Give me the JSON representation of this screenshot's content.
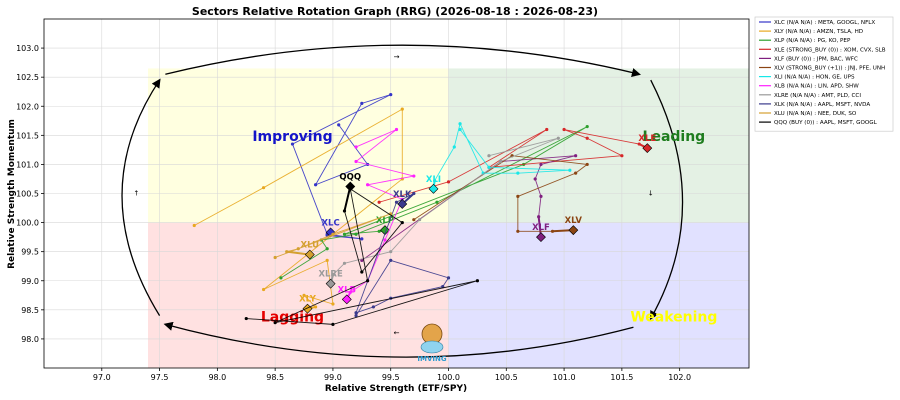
{
  "chart_data": {
    "type": "scatter",
    "title": "Sectors Relative Rotation Graph (RRG) (2026-08-18 : 2026-08-23)",
    "xlabel": "Relative Strength (ETF/SPY)",
    "ylabel": "Relative Strength Momentum",
    "xlim": [
      96.5,
      102.6
    ],
    "ylim": [
      97.5,
      103.5
    ],
    "xticks": [
      "97.0",
      "97.5",
      "98.0",
      "98.5",
      "99.0",
      "99.5",
      "100.0",
      "100.5",
      "101.0",
      "101.5",
      "102.0"
    ],
    "yticks": [
      "98.0",
      "98.5",
      "99.0",
      "99.5",
      "100.0",
      "100.5",
      "101.0",
      "101.5",
      "102.0",
      "102.5",
      "103.0"
    ],
    "grid": true,
    "legend_position": "outside-right",
    "quadrants": {
      "improving": {
        "label": "Improving",
        "color": "#1414c8",
        "bg": "#ffffe0"
      },
      "leading": {
        "label": "Leading",
        "color": "#1e7d1e",
        "bg": "#e4f1e4"
      },
      "lagging": {
        "label": "Lagging",
        "color": "#e60000",
        "bg": "#ffe1e1"
      },
      "weakening": {
        "label": "Weakening",
        "color": "#ffff00",
        "bg": "#e1e1ff"
      }
    },
    "series": [
      {
        "name": "XLC (N/A N/A) : META, GOOGL, NFLX",
        "ticker": "XLC",
        "color": "#3434c8",
        "points": [
          [
            99.05,
            101.68
          ],
          [
            99.3,
            101.0
          ],
          [
            98.85,
            100.65
          ],
          [
            99.25,
            102.05
          ],
          [
            99.5,
            102.2
          ],
          [
            98.65,
            101.35
          ],
          [
            98.95,
            99.8
          ],
          [
            99.25,
            99.72
          ],
          [
            98.95,
            99.78
          ],
          [
            98.98,
            99.83
          ]
        ]
      },
      {
        "name": "XLY (N/A N/A) : AMZN, TSLA, HD",
        "ticker": "XLY",
        "color": "#e8a820",
        "points": [
          [
            97.8,
            99.95
          ],
          [
            98.4,
            100.6
          ],
          [
            99.6,
            101.95
          ],
          [
            99.6,
            100.75
          ],
          [
            98.4,
            98.85
          ],
          [
            98.95,
            99.35
          ],
          [
            99.0,
            98.6
          ],
          [
            98.75,
            98.75
          ],
          [
            98.85,
            98.55
          ],
          [
            98.78,
            98.52
          ]
        ]
      },
      {
        "name": "XLP (N/A N/A) : PG, KO, PEP",
        "ticker": "XLP",
        "color": "#2ca02c",
        "points": [
          [
            98.55,
            99.05
          ],
          [
            98.95,
            99.55
          ],
          [
            98.9,
            99.7
          ],
          [
            99.2,
            99.8
          ],
          [
            99.9,
            100.35
          ],
          [
            101.2,
            101.65
          ],
          [
            100.65,
            101.0
          ],
          [
            99.1,
            99.8
          ],
          [
            99.4,
            99.85
          ],
          [
            99.45,
            99.87
          ]
        ]
      },
      {
        "name": "XLE (STRONG_BUY (0)) : XOM, CVX, SLB",
        "ticker": "XLE",
        "color": "#d62728",
        "points": [
          [
            99.4,
            100.35
          ],
          [
            100.0,
            100.7
          ],
          [
            100.85,
            101.6
          ],
          [
            100.35,
            100.95
          ],
          [
            101.5,
            101.15
          ],
          [
            101.2,
            101.45
          ],
          [
            101.0,
            101.6
          ],
          [
            101.65,
            101.35
          ],
          [
            101.72,
            101.28
          ]
        ]
      },
      {
        "name": "XLF (BUY (0)) : JPM, BAC, WFC",
        "ticker": "XLF",
        "color": "#7f1f7f",
        "points": [
          [
            99.25,
            99.35
          ],
          [
            100.45,
            101.05
          ],
          [
            101.1,
            101.15
          ],
          [
            100.8,
            101.0
          ],
          [
            100.75,
            100.75
          ],
          [
            100.8,
            100.45
          ],
          [
            100.78,
            100.1
          ],
          [
            100.8,
            99.75
          ]
        ]
      },
      {
        "name": "XLV (STRONG_BUY (+1)) : JNJ, PFE, UNH",
        "ticker": "XLV",
        "color": "#8b4513",
        "points": [
          [
            99.7,
            100.05
          ],
          [
            100.55,
            101.15
          ],
          [
            101.2,
            101.0
          ],
          [
            101.1,
            100.85
          ],
          [
            100.6,
            100.45
          ],
          [
            100.6,
            99.85
          ],
          [
            100.9,
            99.85
          ],
          [
            101.08,
            99.87
          ]
        ]
      },
      {
        "name": "XLI (N/A N/A) : HON, GE, UPS",
        "ticker": "XLI",
        "color": "#17e8e8",
        "points": [
          [
            100.1,
            101.6
          ],
          [
            100.35,
            100.95
          ],
          [
            101.05,
            100.9
          ],
          [
            100.6,
            100.85
          ],
          [
            100.3,
            100.85
          ],
          [
            100.1,
            101.7
          ],
          [
            100.05,
            101.3
          ],
          [
            99.88,
            100.72
          ],
          [
            99.87,
            100.58
          ]
        ]
      },
      {
        "name": "XLB (N/A N/A) : LIN, APD, SHW",
        "ticker": "XLB",
        "color": "#ff20ff",
        "points": [
          [
            99.2,
            101.3
          ],
          [
            99.55,
            101.6
          ],
          [
            99.2,
            101.05
          ],
          [
            99.7,
            100.8
          ],
          [
            99.3,
            100.65
          ],
          [
            99.6,
            100.4
          ],
          [
            99.45,
            99.7
          ],
          [
            99.3,
            99.0
          ],
          [
            99.15,
            98.8
          ],
          [
            99.12,
            98.68
          ]
        ]
      },
      {
        "name": "XLRE (N/A N/A) : AMT, PLD, CCI",
        "ticker": "XLRE",
        "color": "#9a9a9a",
        "points": [
          [
            100.35,
            101.15
          ],
          [
            100.95,
            101.45
          ],
          [
            100.45,
            101.05
          ],
          [
            99.75,
            100.05
          ],
          [
            99.5,
            99.5
          ],
          [
            99.1,
            99.3
          ],
          [
            99.0,
            99.1
          ],
          [
            98.98,
            98.95
          ]
        ]
      },
      {
        "name": "XLK (N/A N/A) : AAPL, MSFT, NVDA",
        "ticker": "XLK",
        "color": "#3a3a8c",
        "points": [
          [
            99.2,
            98.4
          ],
          [
            99.5,
            99.35
          ],
          [
            100.0,
            99.05
          ],
          [
            99.95,
            98.9
          ],
          [
            99.5,
            98.7
          ],
          [
            99.35,
            98.55
          ],
          [
            99.2,
            98.45
          ],
          [
            99.55,
            100.35
          ],
          [
            99.7,
            100.5
          ],
          [
            99.6,
            100.32
          ]
        ]
      },
      {
        "name": "XLU (N/A N/A) : NEE, DUK, SO",
        "ticker": "XLU",
        "color": "#d4a030",
        "points": [
          [
            98.5,
            99.4
          ],
          [
            99.5,
            100.15
          ],
          [
            99.0,
            99.8
          ],
          [
            98.7,
            99.55
          ],
          [
            98.6,
            99.5
          ],
          [
            98.8,
            99.45
          ]
        ]
      },
      {
        "name": "QQQ (BUY (0)) : AAPL, MSFT, GOOGL",
        "ticker": "QQQ",
        "color": "#000000",
        "points": [
          [
            98.25,
            98.35
          ],
          [
            99.0,
            98.25
          ],
          [
            100.25,
            99.0
          ],
          [
            98.5,
            98.28
          ],
          [
            99.3,
            99.0
          ],
          [
            99.15,
            100.58
          ],
          [
            99.6,
            100.0
          ],
          [
            99.25,
            99.15
          ],
          [
            99.1,
            100.2
          ],
          [
            99.15,
            100.62
          ]
        ]
      }
    ]
  },
  "watermark_text": "IMVING"
}
